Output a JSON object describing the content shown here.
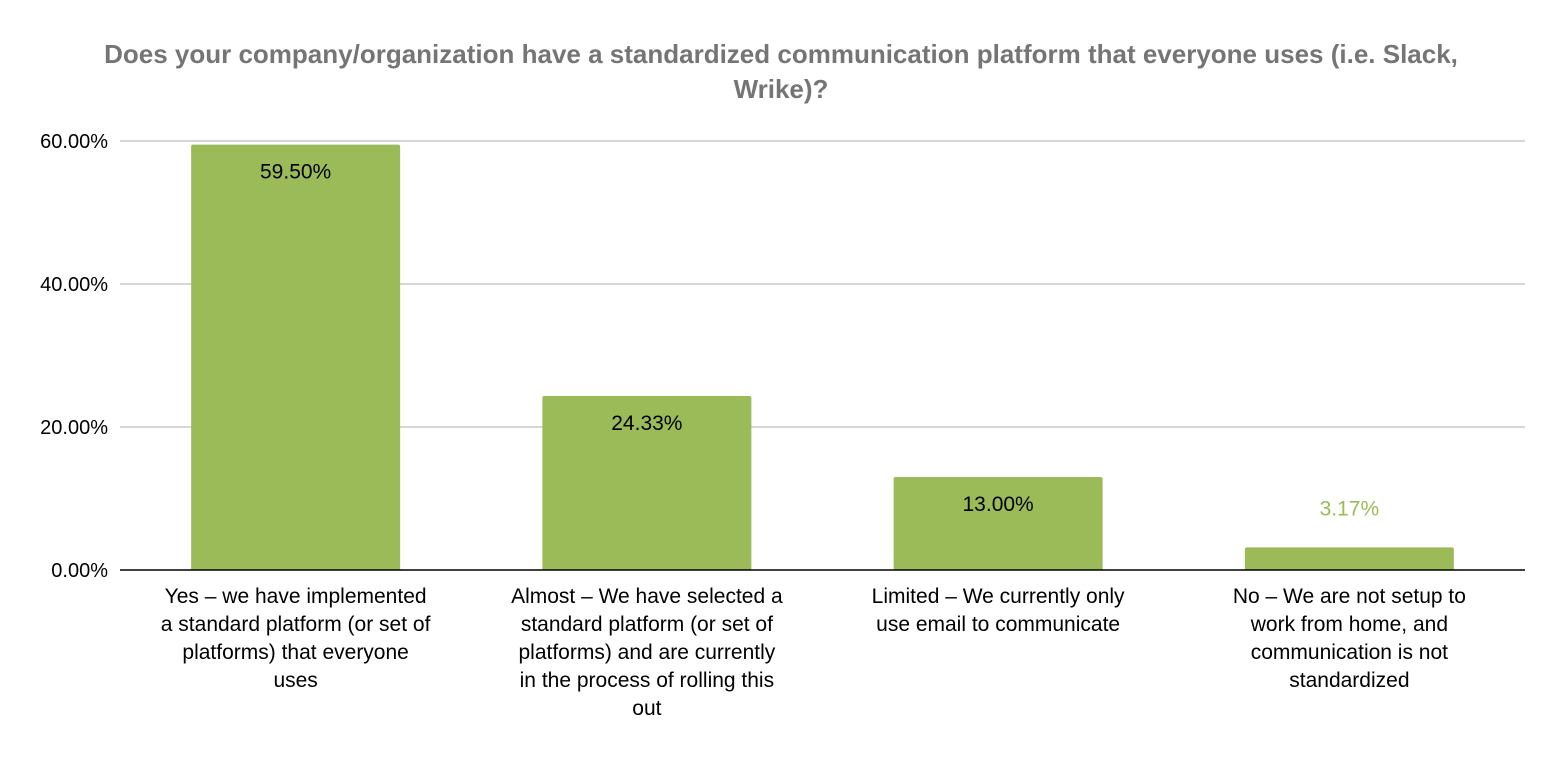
{
  "chart_data": {
    "type": "bar",
    "title_lines": [
      "Does your company/organization have a standardized communication platform that everyone uses (i.e. Slack,",
      "Wrike)?"
    ],
    "categories": [
      [
        "Yes – we have implemented",
        "a standard platform (or set of",
        "platforms) that everyone",
        "uses"
      ],
      [
        "Almost – We have selected a",
        "standard platform (or set of",
        "platforms) and are currently",
        "in the process of rolling this",
        "out"
      ],
      [
        "Limited – We currently only",
        "use email to communicate"
      ],
      [
        "No – We are not setup to",
        "work from home, and",
        "communication is not",
        "standardized"
      ]
    ],
    "values": [
      59.5,
      24.33,
      13.0,
      3.17
    ],
    "data_labels": [
      "59.50%",
      "24.33%",
      "13.00%",
      "3.17%"
    ],
    "y_ticks": [
      0,
      20,
      40,
      60
    ],
    "y_tick_labels": [
      "0.00%",
      "20.00%",
      "40.00%",
      "60.00%"
    ],
    "ylim": [
      0,
      60
    ],
    "grid": true,
    "legend": "none",
    "colors": {
      "bar": "#9bbb59",
      "grid": "#c8c8c8",
      "axis": "#000000",
      "title": "#757575",
      "label_inside": "#000000",
      "label_outside": "#9bbb59"
    }
  }
}
